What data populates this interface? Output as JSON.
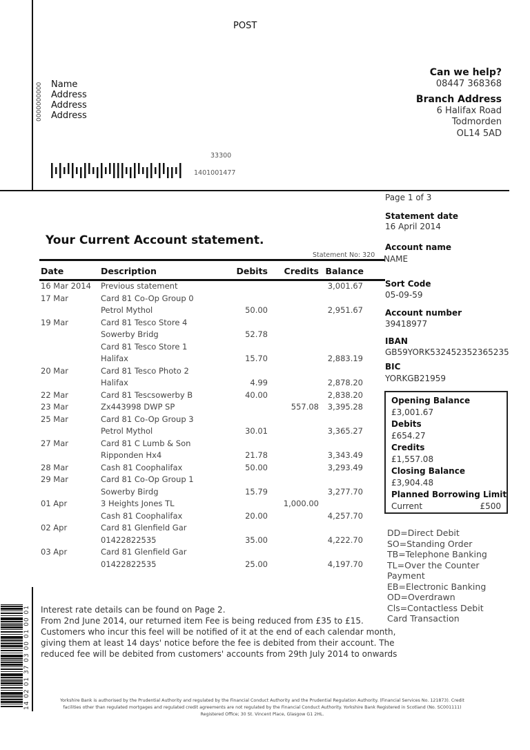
{
  "post_label": "POST",
  "recipient": {
    "code": "0000000000",
    "name": "Name",
    "address": [
      "Address",
      "Address",
      "Address"
    ]
  },
  "mail_codes": {
    "top": "33300",
    "bottom": "1401001477"
  },
  "help": {
    "title": "Can we help?",
    "phone": "08447 368368",
    "branch_title": "Branch Address",
    "branch_lines": [
      "6 Halifax Road",
      "Todmorden",
      "OL14 5AD"
    ]
  },
  "statement": {
    "title": "Your Current Account statement.",
    "number": "Statement No: 320"
  },
  "table": {
    "headers": {
      "date": "Date",
      "description": "Description",
      "debits": "Debits",
      "credits": "Credits",
      "balance": "Balance"
    },
    "rows": [
      {
        "date": "16 Mar 2014",
        "description": "Previous statement",
        "debit": "",
        "credit": "",
        "balance": "3,001.67"
      },
      {
        "date": "17 Mar",
        "description": "Card 81 Co-Op Group 0",
        "debit": "",
        "credit": "",
        "balance": ""
      },
      {
        "date": "",
        "description": "Petrol Mythol",
        "debit": "50.00",
        "credit": "",
        "balance": "2,951.67"
      },
      {
        "date": "19 Mar",
        "description": "Card 81 Tesco Store 4",
        "debit": "",
        "credit": "",
        "balance": ""
      },
      {
        "date": "",
        "description": "Sowerby Bridg",
        "debit": "52.78",
        "credit": "",
        "balance": ""
      },
      {
        "date": "",
        "description": "Card 81 Tesco Store 1",
        "debit": "",
        "credit": "",
        "balance": ""
      },
      {
        "date": "",
        "description": "Halifax",
        "debit": "15.70",
        "credit": "",
        "balance": "2,883.19"
      },
      {
        "date": "20 Mar",
        "description": "Card 81 Tesco Photo 2",
        "debit": "",
        "credit": "",
        "balance": ""
      },
      {
        "date": "",
        "description": "Halifax",
        "debit": "4.99",
        "credit": "",
        "balance": "2,878.20"
      },
      {
        "date": "22 Mar",
        "description": "Card 81 Tescsowerby B",
        "debit": "40.00",
        "credit": "",
        "balance": "2,838.20"
      },
      {
        "date": "23 Mar",
        "description": "Zx443998 DWP SP",
        "debit": "",
        "credit": "557.08",
        "balance": "3,395.28"
      },
      {
        "date": "25 Mar",
        "description": "Card 81 Co-Op Group 3",
        "debit": "",
        "credit": "",
        "balance": ""
      },
      {
        "date": "",
        "description": "Petrol Mythol",
        "debit": "30.01",
        "credit": "",
        "balance": "3,365.27"
      },
      {
        "date": "27 Mar",
        "description": "Card 81 C Lumb & Son",
        "debit": "",
        "credit": "",
        "balance": ""
      },
      {
        "date": "",
        "description": "Ripponden Hx4",
        "debit": "21.78",
        "credit": "",
        "balance": "3,343.49"
      },
      {
        "date": "28 Mar",
        "description": "Cash 81 Coophalifax",
        "debit": "50.00",
        "credit": "",
        "balance": "3,293.49"
      },
      {
        "date": "29 Mar",
        "description": "Card 81 Co-Op Group 1",
        "debit": "",
        "credit": "",
        "balance": ""
      },
      {
        "date": "",
        "description": "Sowerby Birdg",
        "debit": "15.79",
        "credit": "",
        "balance": "3,277.70"
      },
      {
        "date": "01 Apr",
        "description": "3 Heights Jones TL",
        "debit": "",
        "credit": "1,000.00",
        "balance": ""
      },
      {
        "date": "",
        "description": "Cash 81 Coophalifax",
        "debit": "20.00",
        "credit": "",
        "balance": "4,257.70"
      },
      {
        "date": "02 Apr",
        "description": "Card 81 Glenfield Gar",
        "debit": "",
        "credit": "",
        "balance": ""
      },
      {
        "date": "",
        "description": "01422822535",
        "debit": "35.00",
        "credit": "",
        "balance": "4,222.70"
      },
      {
        "date": "03 Apr",
        "description": "Card 81 Glenfield Gar",
        "debit": "",
        "credit": "",
        "balance": ""
      },
      {
        "date": "",
        "description": "01422822535",
        "debit": "25.00",
        "credit": "",
        "balance": "4,197.70"
      }
    ]
  },
  "notes": [
    "Interest rate details can be found on Page 2.",
    "From 2nd June 2014, our returned item Fee is being reduced from £35 to £15.",
    "Customers who incur this feel will be notified of it at the end of each calendar month,",
    "giving them at least 14 days' notice before the fee is debited from their account. The",
    "reduced fee will be debited from customers' accounts from 29th July 2014 to onwards"
  ],
  "sidebar": {
    "page": "Page 1 of 3",
    "statement_date_label": "Statement date",
    "statement_date": "16 April 2014",
    "account_name_label": "Account name",
    "account_name": "NAME",
    "sort_code_label": "Sort Code",
    "sort_code": "05-09-59",
    "account_number_label": "Account number",
    "account_number": "39418977",
    "iban_label": "IBAN",
    "iban": "GB59YORK532452352365235",
    "bic_label": "BIC",
    "bic": "YORKGB21959"
  },
  "summary": {
    "opening_label": "Opening Balance",
    "opening": "£3,001.67",
    "debits_label": "Debits",
    "debits": "£654.27",
    "credits_label": "Credits",
    "credits": "£1,557.08",
    "closing_label": "Closing Balance",
    "closing": "£3,904.48",
    "limit_label": "Planned Borrowing Limit",
    "limit_type": "Current",
    "limit": "£500"
  },
  "legend": [
    "DD=Direct Debit",
    "SO=Standing Order",
    "TB=Telephone Banking",
    "TL=Over the Counter",
    "Payment",
    "EB=Electronic Banking",
    "OD=Overdrawn",
    "Cls=Contactless Debit",
    "Card Transaction"
  ],
  "side_barcode_text": "14 02 01 37 03 00 01 00 01",
  "footer": [
    "Yorkshire Bank is authorised by the Prudential Authority and regulated by the Financial Conduct Authority and the Prudential Regulation Authority. (Financial Services No. 121873). Credit",
    "facilities other than regulated mortgages and regulated credit agreements are not regulated by the Financial Conduct Authority. Yorkshire Bank Registered in Scotland (No. SC001111)",
    "Registered Office; 30 St. Vincent Place, Glasgow G1 2HL."
  ]
}
